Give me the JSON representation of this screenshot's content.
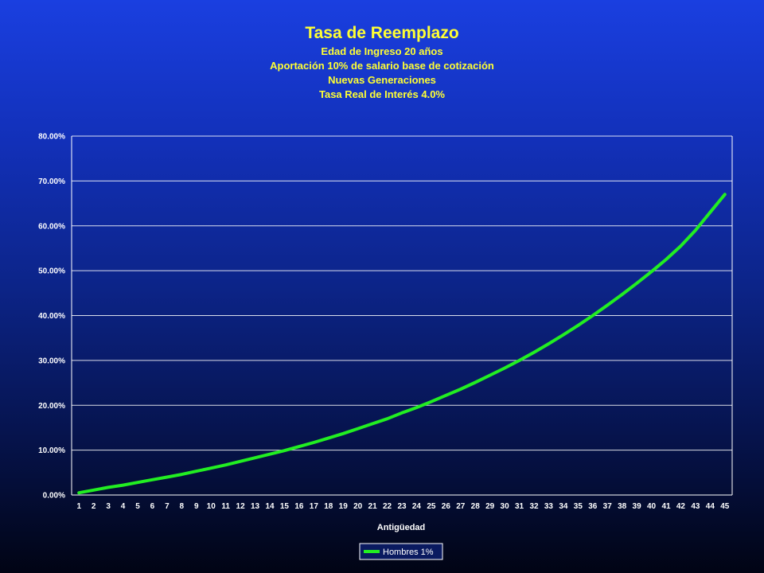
{
  "chart_data": {
    "type": "line",
    "title": "Tasa de Reemplazo",
    "subtitles": [
      "Edad de Ingreso 20 años",
      "Aportación 10% de salario base de cotización",
      "Nuevas Generaciones",
      "Tasa Real de Interés 4.0%"
    ],
    "xlabel": "Antigüedad",
    "ylabel": "",
    "ylim": [
      0,
      0.8
    ],
    "y_ticks": [
      "0.00%",
      "10.00%",
      "20.00%",
      "30.00%",
      "40.00%",
      "50.00%",
      "60.00%",
      "70.00%",
      "80.00%"
    ],
    "grid": true,
    "legend_position": "bottom-center",
    "x": [
      1,
      2,
      3,
      4,
      5,
      6,
      7,
      8,
      9,
      10,
      11,
      12,
      13,
      14,
      15,
      16,
      17,
      18,
      19,
      20,
      21,
      22,
      23,
      24,
      25,
      26,
      27,
      28,
      29,
      30,
      31,
      32,
      33,
      34,
      35,
      36,
      37,
      38,
      39,
      40,
      41,
      42,
      43,
      44,
      45
    ],
    "series": [
      {
        "name": "Hombres 1%",
        "color": "#22ee22",
        "values": [
          0.005,
          0.011,
          0.017,
          0.022,
          0.028,
          0.034,
          0.04,
          0.046,
          0.053,
          0.06,
          0.067,
          0.075,
          0.083,
          0.091,
          0.099,
          0.108,
          0.117,
          0.127,
          0.137,
          0.148,
          0.159,
          0.17,
          0.183,
          0.195,
          0.208,
          0.222,
          0.236,
          0.251,
          0.267,
          0.283,
          0.3,
          0.318,
          0.337,
          0.357,
          0.378,
          0.4,
          0.423,
          0.447,
          0.472,
          0.498,
          0.525,
          0.555,
          0.59,
          0.63,
          0.67
        ]
      }
    ]
  }
}
